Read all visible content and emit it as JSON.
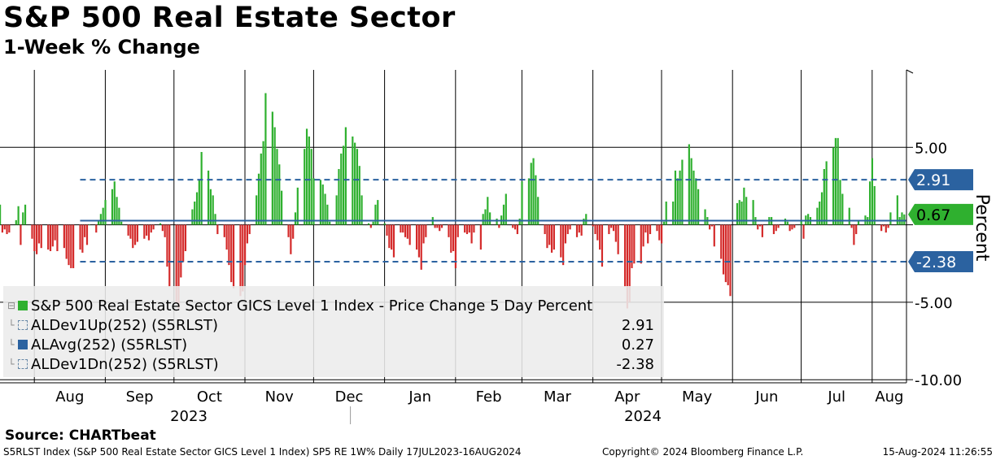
{
  "header": {
    "title": "S&P 500 Real Estate Sector",
    "subtitle": "1-Week % Change"
  },
  "legend": {
    "items": [
      {
        "label": "S&P 500 Real Estate Sector GICS Level 1 Index - Price Change 5 Day Percent",
        "value": "",
        "color": "#2fb02f"
      },
      {
        "label": "ALDev1Up(252) (S5RLST)",
        "value": "2.91",
        "color": "#6a8aa8"
      },
      {
        "label": "ALAvg(252) (S5RLST)",
        "value": "0.27",
        "color": "#2b62a0"
      },
      {
        "label": "ALDev1Dn(252) (S5RLST)",
        "value": "-2.38",
        "color": "#6a8aa8"
      }
    ]
  },
  "source": "Source:  CHARTbeat",
  "footer": {
    "left": "S5RLST Index (S&P 500 Real Estate Sector GICS Level 1 Index) SP5 RE 1W% Daily 17JUL2023-16AUG2024",
    "middle": "Copyright© 2024 Bloomberg Finance L.P.",
    "right": "15-Aug-2024 11:26:55"
  },
  "chart_data": {
    "type": "bar",
    "ylabel": "Percent",
    "ylim": [
      -10.2,
      10
    ],
    "yticks": [
      5,
      0,
      -5,
      -10
    ],
    "ytick_labels": [
      "5.00",
      "",
      "-5.00",
      "-10.00"
    ],
    "months": [
      "Aug",
      "Sep",
      "Oct",
      "Nov",
      "Dec",
      "Jan",
      "Feb",
      "Mar",
      "Apr",
      "May",
      "Jun",
      "Jul",
      "Aug"
    ],
    "years": [
      "2023",
      "2024"
    ],
    "start_date": "2023-07-17",
    "end_date": "2024-08-16",
    "colors": {
      "positive": "#2fb02f",
      "negative": "#d42a2a",
      "band": "#2b62a0",
      "avg": "#2b62a0",
      "last": "#2fb02f"
    },
    "bands": {
      "up": 2.91,
      "avg": 0.27,
      "down": -2.38
    },
    "badges": {
      "up": "2.91",
      "last": "0.67",
      "down": "-2.38"
    },
    "series": [
      {
        "name": "S&P 500 Real Estate Sector GICS Level 1 Index - Price Change 5 Day Percent",
        "x": [
          "2023-07-17",
          "2023-07-18",
          "2023-07-19",
          "2023-07-20",
          "2023-07-21",
          "2023-07-24",
          "2023-07-25",
          "2023-07-26",
          "2023-07-27",
          "2023-07-28",
          "2023-07-31",
          "2023-08-01",
          "2023-08-02",
          "2023-08-03",
          "2023-08-04",
          "2023-08-07",
          "2023-08-08",
          "2023-08-09",
          "2023-08-10",
          "2023-08-11",
          "2023-08-14",
          "2023-08-15",
          "2023-08-16",
          "2023-08-17",
          "2023-08-18",
          "2023-08-21",
          "2023-08-22",
          "2023-08-23",
          "2023-08-24",
          "2023-08-25",
          "2023-08-28",
          "2023-08-29",
          "2023-08-30",
          "2023-08-31",
          "2023-09-01",
          "2023-09-04",
          "2023-09-05",
          "2023-09-06",
          "2023-09-07",
          "2023-09-08",
          "2023-09-11",
          "2023-09-12",
          "2023-09-13",
          "2023-09-14",
          "2023-09-15",
          "2023-09-18",
          "2023-09-19",
          "2023-09-20",
          "2023-09-21",
          "2023-09-22",
          "2023-09-25",
          "2023-09-26",
          "2023-09-27",
          "2023-09-28",
          "2023-09-29",
          "2023-10-02",
          "2023-10-03",
          "2023-10-04",
          "2023-10-05",
          "2023-10-06",
          "2023-10-09",
          "2023-10-10",
          "2023-10-11",
          "2023-10-12",
          "2023-10-13",
          "2023-10-16",
          "2023-10-17",
          "2023-10-18",
          "2023-10-19",
          "2023-10-20",
          "2023-10-23",
          "2023-10-24",
          "2023-10-25",
          "2023-10-26",
          "2023-10-27",
          "2023-10-30",
          "2023-10-31",
          "2023-11-01",
          "2023-11-02",
          "2023-11-03",
          "2023-11-06",
          "2023-11-07",
          "2023-11-08",
          "2023-11-09",
          "2023-11-10",
          "2023-11-13",
          "2023-11-14",
          "2023-11-15",
          "2023-11-16",
          "2023-11-17",
          "2023-11-20",
          "2023-11-21",
          "2023-11-22",
          "2023-11-23",
          "2023-11-24",
          "2023-11-27",
          "2023-11-28",
          "2023-11-29",
          "2023-11-30",
          "2023-12-01",
          "2023-12-04",
          "2023-12-05",
          "2023-12-06",
          "2023-12-07",
          "2023-12-08",
          "2023-12-11",
          "2023-12-12",
          "2023-12-13",
          "2023-12-14",
          "2023-12-15",
          "2023-12-18",
          "2023-12-19",
          "2023-12-20",
          "2023-12-21",
          "2023-12-22",
          "2023-12-25",
          "2023-12-26",
          "2023-12-27",
          "2023-12-28",
          "2023-12-29",
          "2024-01-01",
          "2024-01-02",
          "2024-01-03",
          "2024-01-04",
          "2024-01-05",
          "2024-01-08",
          "2024-01-09",
          "2024-01-10",
          "2024-01-11",
          "2024-01-12",
          "2024-01-15",
          "2024-01-16",
          "2024-01-17",
          "2024-01-18",
          "2024-01-19",
          "2024-01-22",
          "2024-01-23",
          "2024-01-24",
          "2024-01-25",
          "2024-01-26",
          "2024-01-29",
          "2024-01-30",
          "2024-01-31",
          "2024-02-01",
          "2024-02-02",
          "2024-02-05",
          "2024-02-06",
          "2024-02-07",
          "2024-02-08",
          "2024-02-09",
          "2024-02-12",
          "2024-02-13",
          "2024-02-14",
          "2024-02-15",
          "2024-02-16",
          "2024-02-19",
          "2024-02-20",
          "2024-02-21",
          "2024-02-22",
          "2024-02-23",
          "2024-02-26",
          "2024-02-27",
          "2024-02-28",
          "2024-02-29",
          "2024-03-01",
          "2024-03-04",
          "2024-03-05",
          "2024-03-06",
          "2024-03-07",
          "2024-03-08",
          "2024-03-11",
          "2024-03-12",
          "2024-03-13",
          "2024-03-14",
          "2024-03-15",
          "2024-03-18",
          "2024-03-19",
          "2024-03-20",
          "2024-03-21",
          "2024-03-22",
          "2024-03-25",
          "2024-03-26",
          "2024-03-27",
          "2024-03-28",
          "2024-03-29",
          "2024-04-01",
          "2024-04-02",
          "2024-04-03",
          "2024-04-04",
          "2024-04-05",
          "2024-04-08",
          "2024-04-09",
          "2024-04-10",
          "2024-04-11",
          "2024-04-12",
          "2024-04-15",
          "2024-04-16",
          "2024-04-17",
          "2024-04-18",
          "2024-04-19",
          "2024-04-22",
          "2024-04-23",
          "2024-04-24",
          "2024-04-25",
          "2024-04-26",
          "2024-04-29",
          "2024-04-30",
          "2024-05-01",
          "2024-05-02",
          "2024-05-03",
          "2024-05-06",
          "2024-05-07",
          "2024-05-08",
          "2024-05-09",
          "2024-05-10",
          "2024-05-13",
          "2024-05-14",
          "2024-05-15",
          "2024-05-16",
          "2024-05-17",
          "2024-05-20",
          "2024-05-21",
          "2024-05-22",
          "2024-05-23",
          "2024-05-24",
          "2024-05-27",
          "2024-05-28",
          "2024-05-29",
          "2024-05-30",
          "2024-05-31",
          "2024-06-03",
          "2024-06-04",
          "2024-06-05",
          "2024-06-06",
          "2024-06-07",
          "2024-06-10",
          "2024-06-11",
          "2024-06-12",
          "2024-06-13",
          "2024-06-14",
          "2024-06-17",
          "2024-06-18",
          "2024-06-19",
          "2024-06-20",
          "2024-06-21",
          "2024-06-24",
          "2024-06-25",
          "2024-06-26",
          "2024-06-27",
          "2024-06-28",
          "2024-07-01",
          "2024-07-02",
          "2024-07-03",
          "2024-07-04",
          "2024-07-05",
          "2024-07-08",
          "2024-07-09",
          "2024-07-10",
          "2024-07-11",
          "2024-07-12",
          "2024-07-15",
          "2024-07-16",
          "2024-07-17",
          "2024-07-18",
          "2024-07-19",
          "2024-07-22",
          "2024-07-23",
          "2024-07-24",
          "2024-07-25",
          "2024-07-26",
          "2024-07-29",
          "2024-07-30",
          "2024-07-31",
          "2024-08-01",
          "2024-08-02",
          "2024-08-05",
          "2024-08-06",
          "2024-08-07",
          "2024-08-08",
          "2024-08-09",
          "2024-08-12",
          "2024-08-13",
          "2024-08-14",
          "2024-08-15"
        ],
        "values": [
          1.3,
          -0.5,
          -0.3,
          -0.6,
          -0.5,
          0.3,
          1.2,
          -1.3,
          0.8,
          1.3,
          -0.9,
          -1.7,
          -1.9,
          -1.2,
          -1.5,
          -1.6,
          -1.7,
          -1.4,
          -1.0,
          -1.7,
          -1.5,
          -2.2,
          -2.6,
          -2.8,
          -2.8,
          -1.6,
          -1.8,
          -0.8,
          -1.3,
          0.0,
          -0.5,
          0.3,
          0.7,
          1.1,
          1.6,
          2.3,
          2.8,
          1.8,
          1.1,
          0.2,
          -0.7,
          -0.9,
          -1.5,
          -1.3,
          -1.1,
          -0.9,
          -0.7,
          -1.0,
          -0.5,
          -0.3,
          0.1,
          -0.4,
          -0.8,
          -2.7,
          -4.0,
          -5.0,
          -5.4,
          -3.4,
          -2.4,
          -1.7,
          1.0,
          1.5,
          2.1,
          2.9,
          4.7,
          3.5,
          2.3,
          1.9,
          0.7,
          -0.6,
          -0.8,
          -1.6,
          -2.6,
          -3.7,
          -4.1,
          -4.6,
          -4.3,
          -2.6,
          -1.2,
          -0.6,
          1.9,
          3.3,
          4.6,
          5.4,
          8.5,
          7.3,
          6.3,
          4.9,
          3.9,
          2.2,
          -0.8,
          -1.9,
          -0.9,
          0.8,
          2.4,
          4.9,
          6.2,
          5.7,
          4.9,
          3.0,
          2.9,
          2.6,
          2.0,
          1.3,
          0.2,
          1.9,
          3.6,
          4.6,
          5.1,
          6.3,
          5.7,
          5.3,
          4.9,
          3.8,
          1.9,
          0.1,
          -0.2,
          0.2,
          1.3,
          1.6,
          0.1,
          -0.7,
          -1.5,
          -1.6,
          -2.1,
          -0.5,
          -0.5,
          -0.8,
          -0.9,
          -1.3,
          -1.6,
          -2.1,
          -2.9,
          -1.2,
          -0.8,
          0.5,
          -0.2,
          -0.2,
          -0.4,
          -0.2,
          -0.8,
          -1.8,
          -1.7,
          -2.8,
          -0.8,
          -0.5,
          -0.6,
          -0.5,
          -1.2,
          -0.5,
          -1.6,
          0.7,
          1.0,
          1.8,
          0.8,
          0.4,
          -0.2,
          0.6,
          1.3,
          2.0,
          -0.2,
          -0.3,
          -0.6,
          0.4,
          2.8,
          3.0,
          4.0,
          4.3,
          3.2,
          1.8,
          -0.6,
          -1.5,
          -1.3,
          -1.8,
          -1.6,
          -2.1,
          -2.6,
          -1.2,
          -0.6,
          -0.3,
          -0.8,
          -0.5,
          -0.7,
          0.4,
          0.7,
          -0.1,
          -0.6,
          -1.0,
          -1.6,
          -2.7,
          -0.6,
          -0.2,
          -0.4,
          -1.1,
          -1.9,
          -4.0,
          -5.4,
          -5.0,
          -2.8,
          -2.5,
          -2.5,
          -1.4,
          -0.5,
          -1.2,
          -0.6,
          -0.4,
          -1.0,
          -1.2,
          0.2,
          1.5,
          1.5,
          3.5,
          3.0,
          3.5,
          4.2,
          5.2,
          4.3,
          3.5,
          3.0,
          2.3,
          1.0,
          0.5,
          -0.3,
          -0.1,
          -1.4,
          -2.2,
          -3.2,
          -3.7,
          -3.9,
          -4.6,
          1.4,
          1.6,
          1.5,
          2.4,
          1.8,
          1.6,
          0.5,
          -0.3,
          -0.1,
          -0.8,
          0.5,
          0.5,
          -0.6,
          -0.4,
          -0.2,
          0.4,
          0.2,
          -0.4,
          -0.3,
          -0.2,
          0.3,
          -0.9,
          0.6,
          0.7,
          0.5,
          1.1,
          1.5,
          2.1,
          3.6,
          4.1,
          5.0,
          5.6,
          5.6,
          2.9,
          2.0,
          1.1,
          -0.2,
          -1.3,
          -0.6,
          0.3,
          0.6,
          0.5,
          2.8,
          4.3,
          2.5,
          -0.4,
          -0.1,
          -0.5,
          -0.2,
          0.8,
          1.9,
          0.5,
          0.8,
          0.67
        ]
      },
      {
        "name": "ALDev1Up(252) (S5RLST)",
        "values": [
          2.91
        ]
      },
      {
        "name": "ALAvg(252) (S5RLST)",
        "values": [
          0.27
        ]
      },
      {
        "name": "ALDev1Dn(252) (S5RLST)",
        "values": [
          -2.38
        ]
      }
    ]
  }
}
